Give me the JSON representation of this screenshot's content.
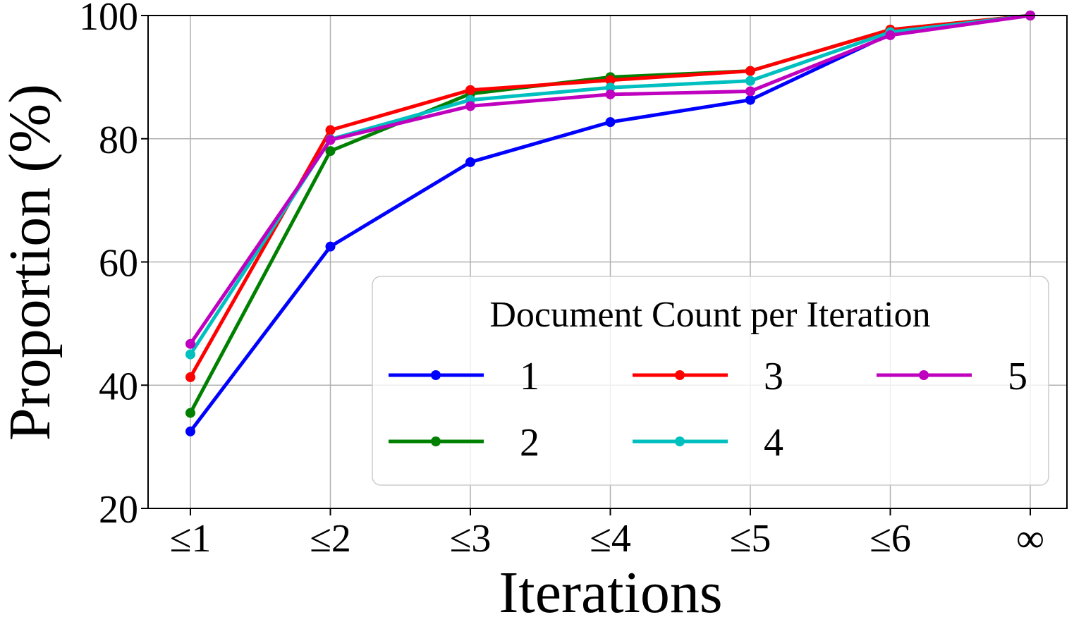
{
  "chart_data": {
    "type": "line",
    "title": "",
    "xlabel": "Iterations",
    "ylabel": "Proportion (%)",
    "categories": [
      "≤1",
      "≤2",
      "≤3",
      "≤4",
      "≤5",
      "≤6",
      "∞"
    ],
    "ylim": [
      20,
      100
    ],
    "yticks": [
      20,
      40,
      60,
      80,
      100
    ],
    "grid": true,
    "legend": {
      "title": "Document Count per Iteration",
      "placement": "lower-right",
      "columns": 3
    },
    "series": [
      {
        "name": "1",
        "color": "#0000ff",
        "values": [
          32.5,
          62.5,
          76.2,
          82.7,
          86.3,
          97.0,
          100
        ]
      },
      {
        "name": "2",
        "color": "#008000",
        "values": [
          35.5,
          78.0,
          87.3,
          90.0,
          91.0,
          97.7,
          100
        ]
      },
      {
        "name": "3",
        "color": "#ff0000",
        "values": [
          41.3,
          81.4,
          87.9,
          89.5,
          91.0,
          97.7,
          100
        ]
      },
      {
        "name": "4",
        "color": "#00bfbf",
        "values": [
          45.0,
          79.9,
          86.3,
          88.3,
          89.4,
          97.3,
          100
        ]
      },
      {
        "name": "5",
        "color": "#bf00bf",
        "values": [
          46.7,
          79.8,
          85.3,
          87.2,
          87.7,
          96.8,
          100
        ]
      }
    ]
  }
}
